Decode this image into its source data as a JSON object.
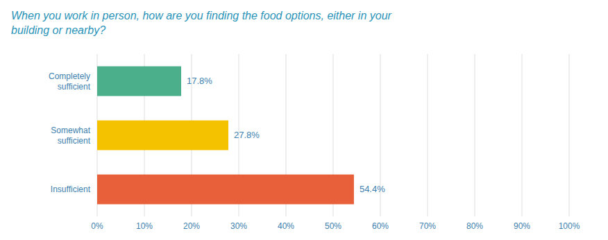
{
  "chart_data": {
    "type": "bar",
    "orientation": "horizontal",
    "title": "When you work in person, how are you finding the food options, either in your\nbuilding or nearby?",
    "categories": [
      "Completely\nsufficient",
      "Somewhat\nsufficient",
      "Insufficient"
    ],
    "values": [
      17.8,
      27.8,
      54.4
    ],
    "value_labels": [
      "17.8%",
      "27.8%",
      "54.4%"
    ],
    "colors": [
      "#4BAF8C",
      "#F5C200",
      "#E8603A"
    ],
    "data_labels": true,
    "xlim": [
      0,
      100
    ],
    "xticks": [
      {
        "value": 0,
        "label": "0%"
      },
      {
        "value": 10,
        "label": "10%"
      },
      {
        "value": 20,
        "label": "20%"
      },
      {
        "value": 30,
        "label": "30%"
      },
      {
        "value": 40,
        "label": "40%"
      },
      {
        "value": 50,
        "label": "50%"
      },
      {
        "value": 60,
        "label": "60%"
      },
      {
        "value": 70,
        "label": "70%"
      },
      {
        "value": 80,
        "label": "80%"
      },
      {
        "value": 90,
        "label": "90%"
      },
      {
        "value": 100,
        "label": "100%"
      }
    ],
    "grid": true
  }
}
